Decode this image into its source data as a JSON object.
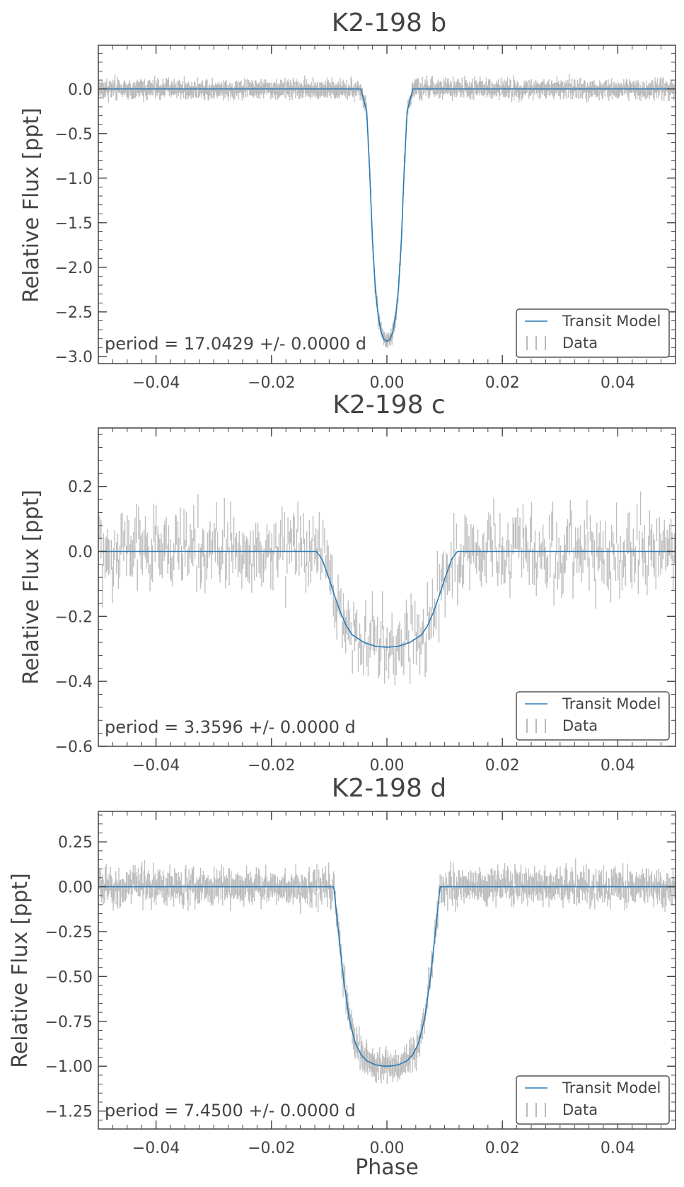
{
  "figure": {
    "xlabel": "Phase"
  },
  "colors": {
    "model": "#2a7bb5",
    "data": "#a9a9a9",
    "axes": "#444444",
    "text": "#444444",
    "legend_border": "#555555"
  },
  "chart_data": [
    {
      "type": "line",
      "title": "K2-198 b",
      "ylabel": "Relative Flux [ppt]",
      "xlabel": "",
      "annotation": "period = 17.0429 +/- 0.0000 d",
      "xlim": [
        -0.05,
        0.05
      ],
      "ylim": [
        -3.08,
        0.49
      ],
      "xticks": [
        -0.04,
        -0.02,
        0.0,
        0.02,
        0.04
      ],
      "xtick_labels": [
        "−0.04",
        "−0.02",
        "0.00",
        "0.02",
        "0.04"
      ],
      "yticks": [
        0.0,
        -0.5,
        -1.0,
        -1.5,
        -2.0,
        -2.5,
        -3.0
      ],
      "ytick_labels": [
        "0.0",
        "−0.5",
        "−1.0",
        "−1.5",
        "−2.0",
        "−2.5",
        "−3.0"
      ],
      "legend": {
        "entries": [
          "Transit Model",
          "Data"
        ],
        "placement": "lower-right"
      },
      "grid": false,
      "series": [
        {
          "name": "Transit Model",
          "kind": "line",
          "x": [
            -0.05,
            -0.0045,
            -0.0035,
            -0.003,
            -0.0025,
            -0.002,
            -0.0015,
            -0.001,
            -0.0005,
            0.0,
            0.0005,
            0.001,
            0.0015,
            0.002,
            0.0025,
            0.003,
            0.0035,
            0.0045,
            0.05
          ],
          "y": [
            0.0,
            0.0,
            -0.25,
            -0.9,
            -1.7,
            -2.25,
            -2.55,
            -2.73,
            -2.81,
            -2.83,
            -2.81,
            -2.73,
            -2.55,
            -2.25,
            -1.7,
            -0.9,
            -0.25,
            0.0,
            0.0
          ]
        },
        {
          "name": "Data",
          "kind": "errorbar",
          "phase_range": [
            -0.05,
            0.05
          ],
          "points": 700,
          "scatter_std_ppt": 0.06,
          "errorbar_halfwidth_ppt": 0.07
        }
      ]
    },
    {
      "type": "line",
      "title": "K2-198 c",
      "ylabel": "Relative Flux [ppt]",
      "xlabel": "",
      "annotation": "period = 3.3596 +/- 0.0000 d",
      "xlim": [
        -0.05,
        0.05
      ],
      "ylim": [
        -0.6,
        0.38
      ],
      "xticks": [
        -0.04,
        -0.02,
        0.0,
        0.02,
        0.04
      ],
      "xtick_labels": [
        "−0.04",
        "−0.02",
        "0.00",
        "0.02",
        "0.04"
      ],
      "yticks": [
        0.2,
        0.0,
        -0.2,
        -0.4,
        -0.6
      ],
      "ytick_labels": [
        "0.2",
        "0.0",
        "−0.2",
        "−0.4",
        "−0.6"
      ],
      "legend": {
        "entries": [
          "Transit Model",
          "Data"
        ],
        "placement": "lower-right"
      },
      "grid": false,
      "series": [
        {
          "name": "Transit Model",
          "kind": "line",
          "x": [
            -0.05,
            -0.0122,
            -0.0112,
            -0.01,
            -0.009,
            -0.008,
            -0.007,
            -0.006,
            -0.004,
            -0.002,
            0.0,
            0.002,
            0.004,
            0.006,
            0.007,
            0.008,
            0.009,
            0.01,
            0.0112,
            0.0122,
            0.05
          ],
          "y": [
            0.0,
            0.0,
            -0.025,
            -0.085,
            -0.14,
            -0.19,
            -0.23,
            -0.257,
            -0.28,
            -0.292,
            -0.295,
            -0.292,
            -0.28,
            -0.257,
            -0.23,
            -0.19,
            -0.14,
            -0.085,
            -0.025,
            0.0,
            0.0
          ]
        },
        {
          "name": "Data",
          "kind": "errorbar",
          "phase_range": [
            -0.05,
            0.05
          ],
          "points": 460,
          "scatter_std_ppt": 0.09,
          "errorbar_halfwidth_ppt": 0.05
        }
      ]
    },
    {
      "type": "line",
      "title": "K2-198 d",
      "ylabel": "Relative Flux [ppt]",
      "xlabel": "Phase",
      "annotation": "period = 7.4500 +/- 0.0000 d",
      "xlim": [
        -0.05,
        0.05
      ],
      "ylim": [
        -1.35,
        0.42
      ],
      "xticks": [
        -0.04,
        -0.02,
        0.0,
        0.02,
        0.04
      ],
      "xtick_labels": [
        "−0.04",
        "−0.02",
        "0.00",
        "0.02",
        "0.04"
      ],
      "yticks": [
        0.25,
        0.0,
        -0.25,
        -0.5,
        -0.75,
        -1.0,
        -1.25
      ],
      "ytick_labels": [
        "0.25",
        "0.00",
        "−0.25",
        "−0.50",
        "−0.75",
        "−1.00",
        "−1.25"
      ],
      "legend": {
        "entries": [
          "Transit Model",
          "Data"
        ],
        "placement": "lower-right"
      },
      "grid": false,
      "series": [
        {
          "name": "Transit Model",
          "kind": "line",
          "x": [
            -0.05,
            -0.0092,
            -0.0085,
            -0.0075,
            -0.0065,
            -0.0055,
            -0.0045,
            -0.0035,
            -0.002,
            -0.001,
            0.0,
            0.001,
            0.002,
            0.0035,
            0.0045,
            0.0055,
            0.0065,
            0.0075,
            0.0085,
            0.0092,
            0.05
          ],
          "y": [
            0.0,
            0.0,
            -0.22,
            -0.52,
            -0.74,
            -0.87,
            -0.935,
            -0.97,
            -0.992,
            -0.998,
            -1.0,
            -0.998,
            -0.992,
            -0.97,
            -0.935,
            -0.87,
            -0.74,
            -0.52,
            -0.22,
            0.0,
            0.0
          ]
        },
        {
          "name": "Data",
          "kind": "errorbar",
          "phase_range": [
            -0.05,
            0.05
          ],
          "points": 600,
          "scatter_std_ppt": 0.06,
          "errorbar_halfwidth_ppt": 0.06
        }
      ]
    }
  ]
}
